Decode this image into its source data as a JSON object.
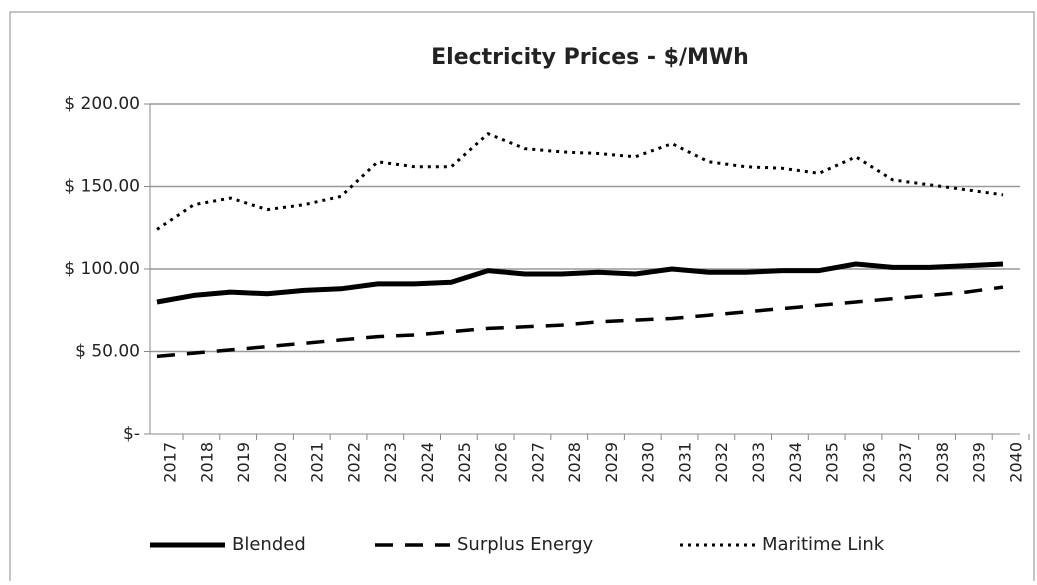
{
  "chart_data": {
    "type": "line",
    "title": "Electricity Prices - $/MWh",
    "categories": [
      "2017",
      "2018",
      "2019",
      "2020",
      "2021",
      "2022",
      "2023",
      "2024",
      "2025",
      "2026",
      "2027",
      "2028",
      "2029",
      "2030",
      "2031",
      "2032",
      "2033",
      "2034",
      "2035",
      "2036",
      "2037",
      "2038",
      "2039",
      "2040"
    ],
    "series": [
      {
        "name": "Blended",
        "color": "#000000",
        "dash": "solid",
        "values": [
          80,
          84,
          86,
          85,
          87,
          88,
          91,
          91,
          92,
          99,
          97,
          97,
          98,
          97,
          100,
          98,
          98,
          99,
          99,
          103,
          101,
          101,
          102,
          103
        ]
      },
      {
        "name": "Surplus Energy",
        "color": "#000000",
        "dash": "dashed",
        "values": [
          47,
          49,
          51,
          53,
          55,
          57,
          59,
          60,
          62,
          64,
          65,
          66,
          68,
          69,
          70,
          72,
          74,
          76,
          78,
          80,
          82,
          84,
          86,
          89
        ]
      },
      {
        "name": "Maritime Link",
        "color": "#000000",
        "dash": "dotted",
        "values": [
          124,
          139,
          143,
          136,
          139,
          144,
          165,
          162,
          162,
          182,
          173,
          171,
          170,
          168,
          176,
          165,
          162,
          161,
          158,
          168,
          154,
          151,
          148,
          145
        ]
      }
    ],
    "ylim": [
      0,
      200
    ],
    "yticks": [
      {
        "value": 0,
        "label": "$-"
      },
      {
        "value": 50,
        "label": "$ 50.00"
      },
      {
        "value": 100,
        "label": "$ 100.00"
      },
      {
        "value": 150,
        "label": "$ 150.00"
      },
      {
        "value": 200,
        "label": "$ 200.00"
      }
    ],
    "grid": true,
    "legend": "bottom"
  }
}
